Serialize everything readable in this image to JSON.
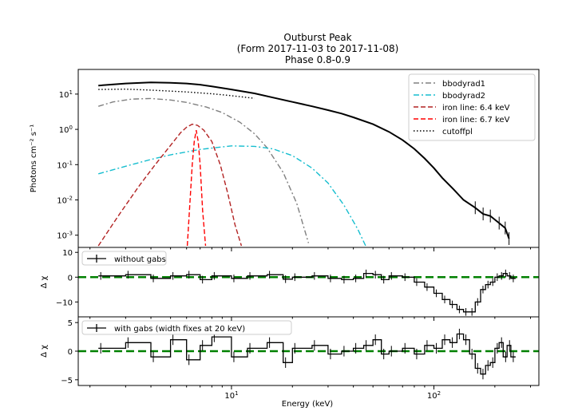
{
  "chart_data": {
    "type": "line",
    "title_lines": [
      "Outburst Peak",
      "(Form 2017-11-03 to 2017-11-08)",
      "Phase 0.8-0.9"
    ],
    "x_scale": "log",
    "xlabel": "Energy (keV)",
    "xlim": [
      1.75,
      330
    ],
    "x_ticks": [
      {
        "v": 10,
        "b": "10",
        "e": "1"
      },
      {
        "v": 100,
        "b": "10",
        "e": "2"
      }
    ],
    "panels": [
      {
        "id": "spectrum",
        "ylabel": "Photons cm⁻² s⁻¹",
        "y_scale": "log",
        "ylim": [
          0.00045,
          50
        ],
        "y_ticks": [
          {
            "v": 10,
            "b": "10",
            "e": "1"
          },
          {
            "v": 1,
            "b": "10",
            "e": "0"
          },
          {
            "v": 0.1,
            "b": "10",
            "e": "-1"
          },
          {
            "v": 0.01,
            "b": "10",
            "e": "-2"
          },
          {
            "v": 0.001,
            "b": "10",
            "e": "-3"
          }
        ],
        "legend": {
          "position": "top-right"
        },
        "series": [
          {
            "name": "bbodyrad1",
            "color": "#808080",
            "dash": "dashdot",
            "x": [
              2.2,
              2.6,
              3.2,
              4.0,
              5.0,
              6.0,
              7.5,
              9.0,
              11.0,
              13.0,
              15.0,
              18.0,
              21.0,
              24.0
            ],
            "y": [
              4.5,
              6.0,
              7.2,
              7.5,
              6.8,
              5.8,
              4.3,
              3.0,
              1.6,
              0.75,
              0.3,
              0.06,
              0.008,
              0.0006
            ]
          },
          {
            "name": "bbodyrad2",
            "color": "#17becf",
            "dash": "dashdot",
            "x": [
              2.2,
              3.0,
              4.0,
              5.0,
              7.0,
              10.0,
              13.0,
              16.0,
              20.0,
              25.0,
              30.0,
              36.0,
              42.0,
              46.0
            ],
            "y": [
              0.055,
              0.09,
              0.14,
              0.19,
              0.27,
              0.34,
              0.33,
              0.28,
              0.18,
              0.08,
              0.03,
              0.007,
              0.0015,
              0.0005
            ]
          },
          {
            "name": "iron line: 6.4 keV",
            "color": "#b22222",
            "dash": "dashed",
            "x": [
              2.2,
              2.8,
              3.5,
              4.2,
              5.0,
              5.6,
              6.0,
              6.4,
              6.8,
              7.3,
              8.0,
              8.8,
              9.6,
              10.4,
              11.2
            ],
            "y": [
              0.0005,
              0.004,
              0.025,
              0.1,
              0.35,
              0.8,
              1.15,
              1.4,
              1.3,
              0.95,
              0.45,
              0.1,
              0.015,
              0.002,
              0.0005
            ]
          },
          {
            "name": "iron line: 6.7 keV",
            "color": "#ff0000",
            "dash": "dashed",
            "x": [
              6.05,
              6.2,
              6.4,
              6.55,
              6.7,
              6.85,
              7.0,
              7.2,
              7.45
            ],
            "y": [
              0.0005,
              0.005,
              0.1,
              0.45,
              0.95,
              0.45,
              0.1,
              0.005,
              0.0005
            ]
          },
          {
            "name": "cutoffpl",
            "color": "#000000",
            "dash": "dotted",
            "x": [
              2.2,
              3.0,
              4.0,
              6.0,
              8.0,
              10.0,
              13.0
            ],
            "y": [
              13.5,
              13.8,
              13.0,
              11.5,
              10.2,
              9.0,
              7.6
            ]
          }
        ],
        "data_series": {
          "name": "data",
          "color": "#000000",
          "x": [
            2.2,
            3.0,
            4.0,
            5.0,
            6.0,
            7.0,
            8.0,
            10.0,
            13.0,
            16.0,
            20.0,
            25.0,
            30.0,
            35.0,
            40.0,
            50.0,
            60.0,
            70.0,
            80.0,
            90.0,
            100.0,
            110.0,
            125.0,
            140.0,
            160.0,
            175.0,
            190.0,
            210.0,
            225.0,
            235.0
          ],
          "y": [
            17.5,
            20.0,
            21.5,
            21.0,
            20.0,
            18.5,
            16.5,
            13.5,
            10.5,
            8.0,
            6.0,
            4.5,
            3.5,
            2.8,
            2.2,
            1.4,
            0.85,
            0.5,
            0.28,
            0.15,
            0.08,
            0.042,
            0.02,
            0.01,
            0.006,
            0.004,
            0.0035,
            0.0022,
            0.0016,
            0.0008
          ]
        }
      },
      {
        "id": "residual-without",
        "ylabel": "Δ χ",
        "y_scale": "linear",
        "ylim": [
          -16,
          12
        ],
        "y_ticks": [
          {
            "v": 10,
            "t": "10"
          },
          {
            "v": 0,
            "t": "0"
          },
          {
            "v": -10,
            "t": "−10"
          }
        ],
        "legend": {
          "position": "top-left",
          "label": "without gabs"
        },
        "zero_line_color": "#008000",
        "residual_series": {
          "name": "without gabs",
          "x": [
            2.2,
            3.0,
            4.0,
            5.0,
            6.0,
            7.0,
            8.0,
            10.0,
            12.0,
            15.0,
            18.0,
            20.0,
            25.0,
            30.0,
            35.0,
            40.0,
            45.0,
            50.0,
            55.0,
            60.0,
            70.0,
            80.0,
            90.0,
            100.0,
            110.0,
            120.0,
            130.0,
            140.0,
            150.0,
            160.0,
            170.0,
            180.0,
            190.0,
            200.0,
            210.0,
            220.0,
            230.0,
            240.0
          ],
          "y": [
            0.5,
            1.0,
            -0.5,
            0.5,
            1.0,
            -1.0,
            0.5,
            -0.5,
            0.5,
            1.0,
            -0.8,
            0.0,
            0.5,
            -0.5,
            -1.0,
            -0.5,
            1.5,
            1.0,
            -1.0,
            0.5,
            0.0,
            -2.0,
            -4.0,
            -6.5,
            -9.0,
            -11.0,
            -13.0,
            -14.0,
            -14.0,
            -10.0,
            -5.0,
            -3.0,
            -2.0,
            0.0,
            0.5,
            1.5,
            0.5,
            -0.5
          ]
        }
      },
      {
        "id": "residual-with",
        "ylabel": "Δ χ",
        "y_scale": "linear",
        "ylim": [
          -6,
          6
        ],
        "y_ticks": [
          {
            "v": 5,
            "t": "5"
          },
          {
            "v": 0,
            "t": "0"
          },
          {
            "v": -5,
            "t": "−5"
          }
        ],
        "legend": {
          "position": "top-left",
          "label": "with gabs (width fixes at 20 keV)"
        },
        "zero_line_color": "#008000",
        "residual_series": {
          "name": "with gabs (width fixes at 20 keV)",
          "x": [
            2.2,
            3.0,
            4.0,
            5.0,
            6.0,
            7.0,
            8.0,
            10.0,
            12.0,
            15.0,
            18.0,
            20.0,
            25.0,
            30.0,
            35.0,
            40.0,
            45.0,
            50.0,
            55.0,
            60.0,
            70.0,
            80.0,
            90.0,
            100.0,
            110.0,
            120.0,
            130.0,
            140.0,
            150.0,
            160.0,
            170.0,
            180.0,
            190.0,
            200.0,
            210.0,
            220.0,
            230.0,
            240.0
          ],
          "y": [
            0.5,
            1.5,
            -1.0,
            2.0,
            -1.5,
            1.0,
            2.5,
            -1.0,
            0.5,
            1.5,
            -2.0,
            0.5,
            1.0,
            -0.5,
            0.0,
            0.5,
            1.0,
            2.0,
            -0.5,
            0.0,
            0.5,
            -0.5,
            1.0,
            0.5,
            2.0,
            1.5,
            3.0,
            2.0,
            -0.5,
            -3.0,
            -4.0,
            -2.5,
            -2.0,
            0.5,
            1.5,
            -1.0,
            1.0,
            -1.0
          ]
        }
      }
    ]
  }
}
